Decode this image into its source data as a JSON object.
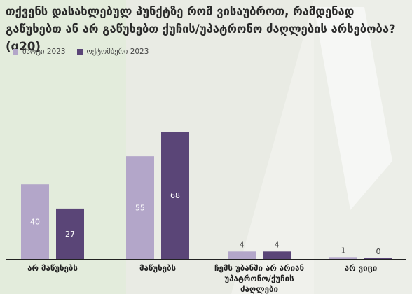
{
  "chart_data": {
    "type": "bar",
    "title": "თქვენს დასახლებულ პუნქტზე რომ ვისაუბროთ, რამდენად გაწუხებთ ან არ გაწუხებთ ქუჩის/უპატრონო ძაღლების არსებობა? (q20)",
    "categories": [
      [
        "არ მაწუხებს"
      ],
      [
        "მაწუხებს"
      ],
      [
        "ჩემს უბანში არ არიან",
        "უპატრონო/ქუჩის",
        "ძაღლები"
      ],
      [
        "არ ვიცი"
      ]
    ],
    "series": [
      {
        "name": "მარტი 2023",
        "values": [
          40,
          55,
          4,
          1
        ],
        "color": "#b3a6c9"
      },
      {
        "name": "ოქტომბერი 2023",
        "values": [
          27,
          68,
          4,
          0
        ],
        "color": "#5a4577"
      }
    ],
    "ylim": [
      0,
      100
    ],
    "legend_position": "top-left",
    "grid": false,
    "label_colors": {
      "inside": "#ffffff",
      "outside": "#3a3a3a"
    }
  }
}
